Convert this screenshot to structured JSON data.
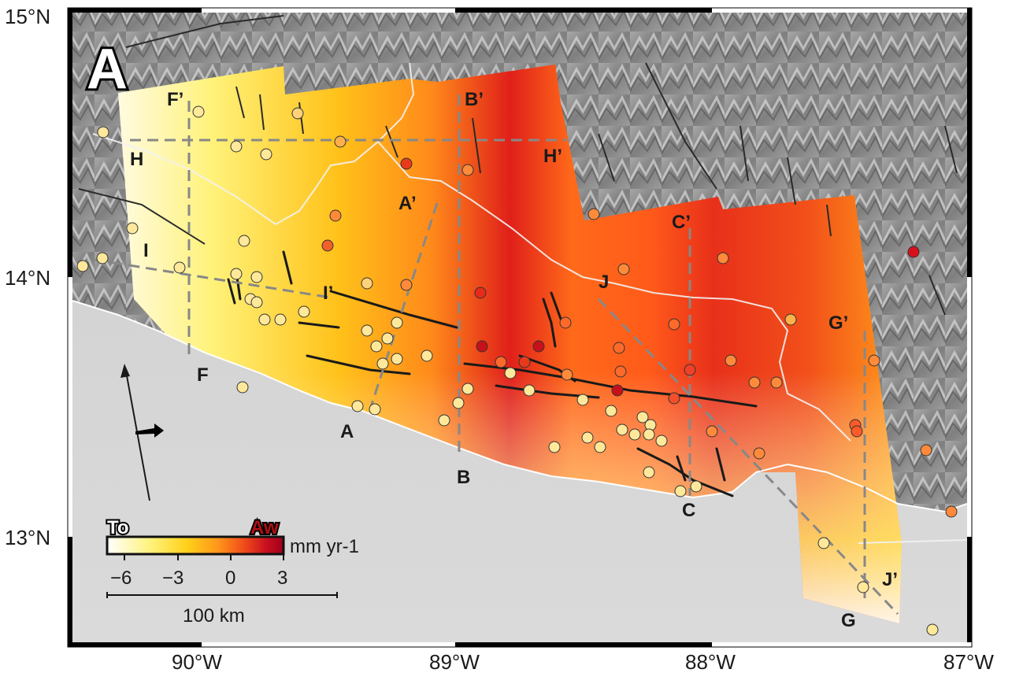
{
  "panel_label": "A",
  "axes": {
    "lat_labels": [
      "15°N",
      "14°N",
      "13°N"
    ],
    "lon_labels": [
      "90°W",
      "89°W",
      "88°W",
      "87°W"
    ]
  },
  "profiles": [
    {
      "start": "A",
      "end": "A’"
    },
    {
      "start": "B",
      "end": "B’"
    },
    {
      "start": "C",
      "end": "C’"
    },
    {
      "start": "F",
      "end": "F’"
    },
    {
      "start": "G",
      "end": "G’"
    },
    {
      "start": "H",
      "end": "H’"
    },
    {
      "start": "I",
      "end": "I’"
    },
    {
      "start": "J",
      "end": "J’"
    }
  ],
  "colorbar": {
    "left_label": "To",
    "right_label": "Aw",
    "unit": "mm yr-1",
    "ticks": [
      "−6",
      "−3",
      "0",
      "3"
    ],
    "range": [
      -7,
      3
    ],
    "colors": [
      "#ffffff",
      "#fff27a",
      "#ffd11a",
      "#ff9a1a",
      "#f04a1a",
      "#c81020",
      "#a0001a"
    ]
  },
  "scale_bar": {
    "label": "100 km"
  },
  "colors": {
    "relief": "#8c8c8c",
    "ocean": "#d6d6d6",
    "fault": "#1a1a1a",
    "profile_line": "#888888",
    "border": "#ffffff"
  }
}
